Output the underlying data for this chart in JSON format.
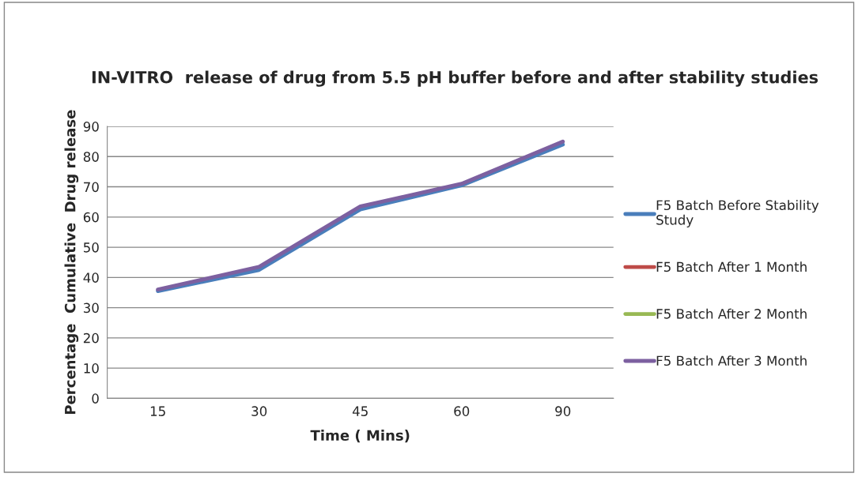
{
  "chart_data": {
    "type": "line",
    "title": "IN-VITRO  release of drug from 5.5 pH buffer before and after stability studies",
    "xlabel": "Time ( Mins)",
    "ylabel": "Percentage  Cumulative  Drug release",
    "categories": [
      "15",
      "30",
      "45",
      "60",
      "90"
    ],
    "series": [
      {
        "name": "F5 Batch Before Stability Study",
        "color": "#4a7ebb",
        "values": [
          35.5,
          42.5,
          62.5,
          70.5,
          84
        ]
      },
      {
        "name": "F5 Batch After 1 Month",
        "color": "#be4b48",
        "values": [
          null,
          null,
          null,
          null,
          null
        ]
      },
      {
        "name": "F5 Batch After 2 Month",
        "color": "#98b954",
        "values": [
          null,
          null,
          null,
          null,
          null
        ]
      },
      {
        "name": "F5 Batch After 3 Month",
        "color": "#7d60a0",
        "values": [
          36,
          43.5,
          63.5,
          71,
          85
        ]
      }
    ],
    "ylim": [
      0,
      90
    ],
    "yticks": [
      0,
      10,
      20,
      30,
      40,
      50,
      60,
      70,
      80,
      90
    ],
    "grid": "y",
    "legend": "right",
    "marker": "none",
    "line_style": "solid"
  }
}
